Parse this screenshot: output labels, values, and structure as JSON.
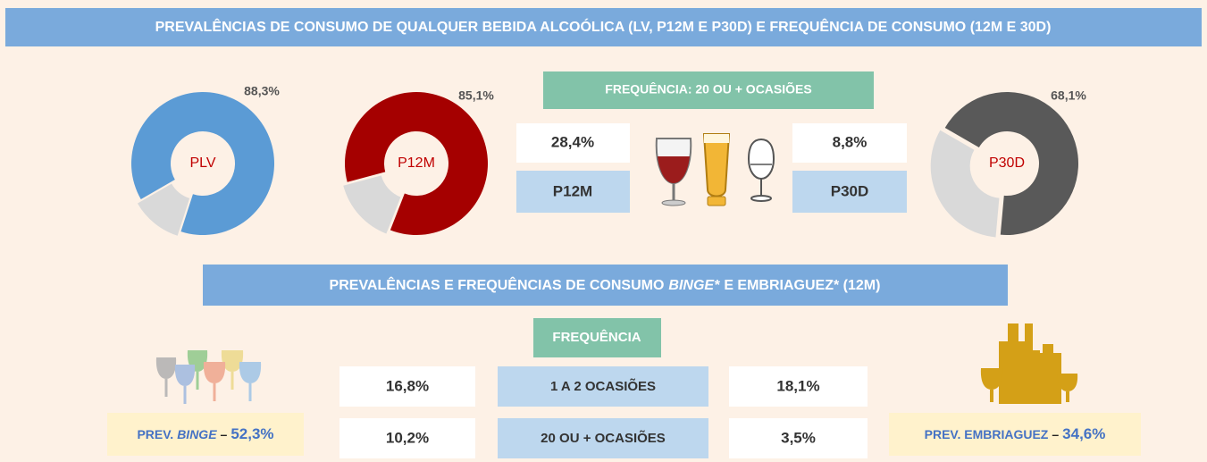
{
  "title": "PREVALÊNCIAS DE CONSUMO DE QUALQUER BEBIDA ALCOÓLICA (LV, P12M E P30D) E FREQUÊNCIA DE CONSUMO (12M E 30D)",
  "chart_data": [
    {
      "type": "pie",
      "donut": true,
      "center_label": "PLV",
      "values": [
        88.3
      ],
      "value_labels": [
        "88,3%"
      ],
      "color": "#5b9bd5",
      "rest_color": "#d9d9d9"
    },
    {
      "type": "pie",
      "donut": true,
      "center_label": "P12M",
      "values": [
        85.1
      ],
      "value_labels": [
        "85,1%"
      ],
      "color": "#a50000",
      "rest_color": "#d9d9d9"
    },
    {
      "type": "pie",
      "donut": true,
      "center_label": "P30D",
      "values": [
        68.1
      ],
      "value_labels": [
        "68,1%"
      ],
      "color": "#595959",
      "rest_color": "#d9d9d9"
    }
  ],
  "frequency_top": {
    "header": "FREQUÊNCIA: 20 OU + OCASIÕES",
    "left": {
      "value": "28,4%",
      "label": "P12M"
    },
    "right": {
      "value": "8,8%",
      "label": "P30D"
    }
  },
  "section2": {
    "title_parts": [
      "PREVALÊNCIAS E FREQUÊNCIAS DE CONSUMO",
      "BINGE*",
      "E EMBRIAGUEZ* (12M)"
    ],
    "header": "FREQUÊNCIA",
    "rows": [
      {
        "left": "16,8%",
        "label": "1 A 2 OCASIÕES",
        "right": "18,1%"
      },
      {
        "left": "10,2%",
        "label": "20 OU + OCASIÕES",
        "right": "3,5%"
      }
    ],
    "binge": {
      "prefix": "PREV.",
      "term": "BINGE",
      "separator": "–",
      "value": "52,3%"
    },
    "drunk": {
      "prefix": "PREV. EMBRIAGUEZ",
      "separator": "–",
      "value": "34,6%"
    }
  }
}
